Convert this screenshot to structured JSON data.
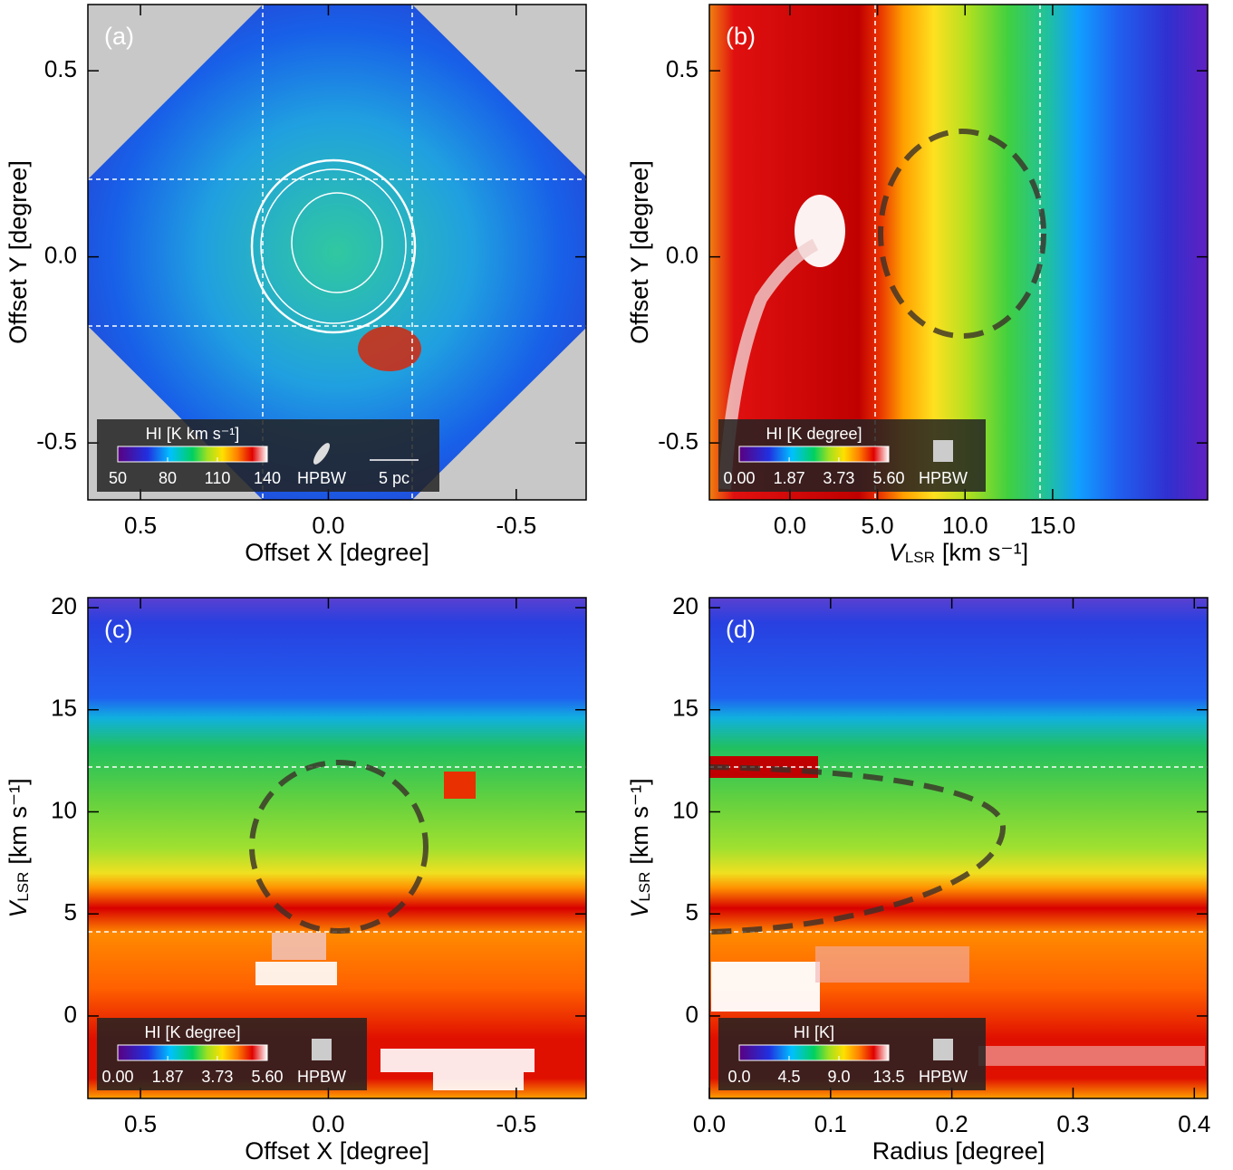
{
  "chart_data": [
    {
      "type": "heatmap",
      "panel_label": "(a)",
      "xlabel": "Offset X [degree]",
      "ylabel": "Offset Y [degree]",
      "xlim": [
        0.64,
        -0.686
      ],
      "ylim": [
        -0.653,
        0.678
      ],
      "xticks": [
        0.5,
        {
          "value": 0,
          "label": "0.0"
        },
        -0.5
      ],
      "yticks": [
        0.5,
        {
          "value": 0,
          "label": "0.0"
        },
        -0.5
      ],
      "colorbar": {
        "label": "HI [K km s⁻¹]",
        "clim": [
          50,
          140
        ],
        "ticks": [
          50,
          80,
          110,
          140
        ]
      },
      "beam_label": "HPBW",
      "scale_label": "5 pc"
    },
    {
      "type": "heatmap",
      "panel_label": "(b)",
      "xlabel": {
        "symbol": "V",
        "subscript": "LSR",
        "unit": "[km s⁻¹]"
      },
      "ylabel": "Offset Y [degree]",
      "xlim": [
        -4.6,
        23.85
      ],
      "ylim": [
        -0.653,
        0.678
      ],
      "xticks": [
        {
          "value": 0,
          "label": "0.0"
        },
        {
          "value": 5,
          "label": "5.0"
        },
        {
          "value": 10,
          "label": "10.0"
        },
        {
          "value": 15,
          "label": "15.0"
        }
      ],
      "yticks": [
        0.5,
        {
          "value": 0,
          "label": "0.0"
        },
        -0.5
      ],
      "colorbar": {
        "label": "HI [K degree]",
        "clim": [
          0,
          5.6
        ],
        "ticks": [
          {
            "value": 0,
            "label": "0.00"
          },
          1.87,
          3.73,
          {
            "value": 5.6,
            "label": "5.60"
          }
        ]
      },
      "beam_label": "HPBW"
    },
    {
      "type": "heatmap",
      "panel_label": "(c)",
      "xlabel": "Offset X [degree]",
      "ylabel": {
        "symbol": "V",
        "subscript": "LSR",
        "unit": "[km s⁻¹]"
      },
      "xlim": [
        0.64,
        -0.686
      ],
      "ylim": [
        -4.04,
        20.49
      ],
      "xticks": [
        0.5,
        {
          "value": 0,
          "label": "0.0"
        },
        -0.5
      ],
      "yticks": [
        0,
        5,
        10,
        15,
        20
      ],
      "colorbar": {
        "label": "HI [K degree]",
        "clim": [
          0,
          5.6
        ],
        "ticks": [
          {
            "value": 0,
            "label": "0.00"
          },
          1.87,
          3.73,
          {
            "value": 5.6,
            "label": "5.60"
          }
        ]
      },
      "beam_label": "HPBW"
    },
    {
      "type": "heatmap",
      "panel_label": "(d)",
      "xlabel": "Radius [degree]",
      "ylabel": {
        "symbol": "V",
        "subscript": "LSR",
        "unit": "[km s⁻¹]"
      },
      "xlim": [
        0,
        0.411
      ],
      "ylim": [
        -4.04,
        20.49
      ],
      "xticks": [
        {
          "value": 0,
          "label": "0.0"
        },
        0.1,
        0.2,
        0.3,
        0.4
      ],
      "yticks": [
        0,
        5,
        10,
        15,
        20
      ],
      "colorbar": {
        "label": "HI [K]",
        "clim": [
          0,
          13.5
        ],
        "ticks": [
          {
            "value": 0,
            "label": "0.0"
          },
          4.5,
          {
            "value": 9,
            "label": "9.0"
          },
          13.5
        ]
      },
      "beam_label": "HPBW"
    }
  ]
}
